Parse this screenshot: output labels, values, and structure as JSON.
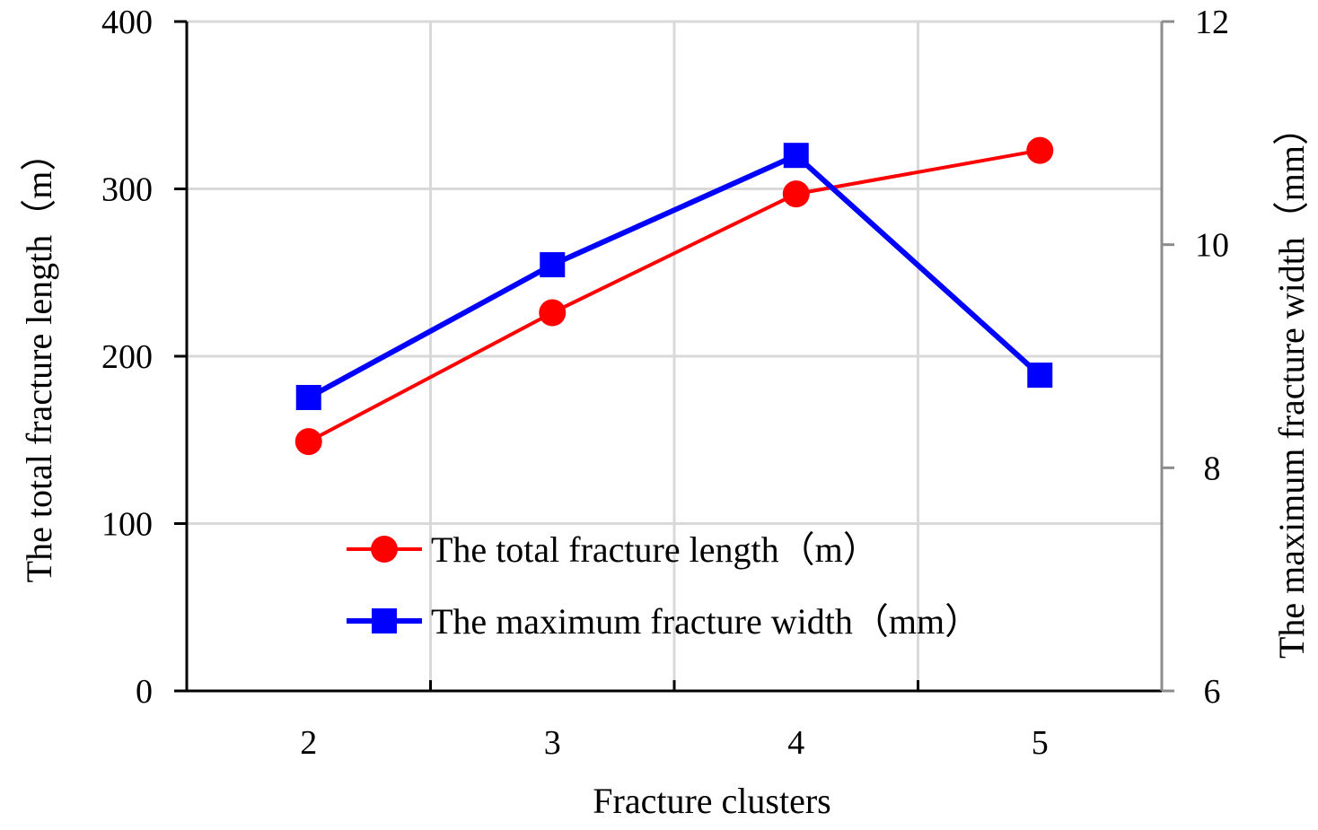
{
  "chart_data": {
    "type": "line",
    "xlabel": "Fracture clusters",
    "ylabel_left": "The total fracture length（m）",
    "ylabel_right": "The maximum fracture width（mm）",
    "categories": [
      "2",
      "3",
      "4",
      "5"
    ],
    "y_left_range": [
      0,
      400
    ],
    "y_left_ticks": [
      0,
      100,
      200,
      300,
      400
    ],
    "y_right_range": [
      6,
      12
    ],
    "y_right_ticks": [
      6,
      8,
      10,
      12
    ],
    "grid": true,
    "legend_position": "bottom-center",
    "series": [
      {
        "name": "The total fracture length（m）",
        "axis": "left",
        "color": "#ff0000",
        "marker": "circle",
        "values": [
          149,
          226,
          297,
          323
        ]
      },
      {
        "name": "The maximum fracture width（mm）",
        "axis": "right",
        "color": "#0000ff",
        "marker": "square",
        "values": [
          8.63,
          9.82,
          10.8,
          8.83
        ]
      }
    ]
  }
}
